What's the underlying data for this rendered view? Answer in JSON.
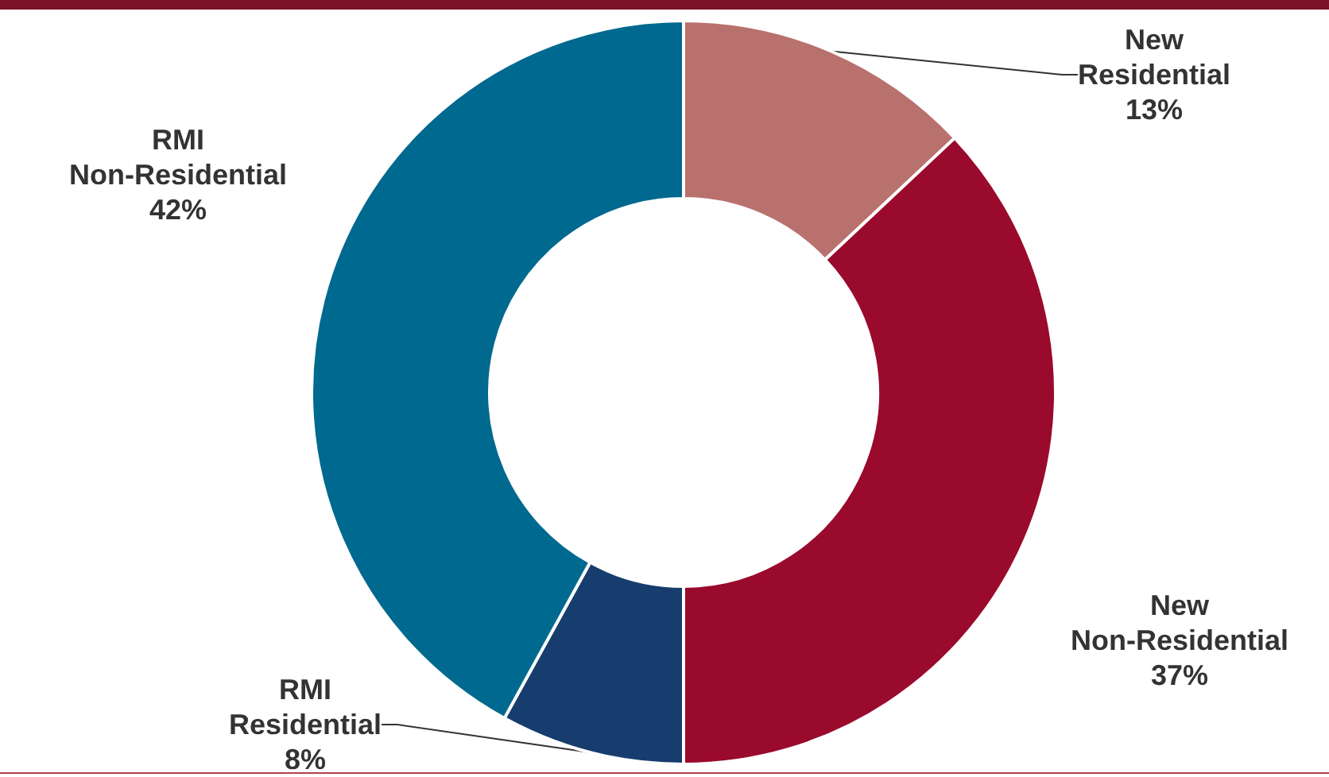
{
  "chart_data": {
    "type": "donut",
    "categories": [
      "New Residential",
      "New Non-Residential",
      "RMI Residential",
      "RMI Non-Residential"
    ],
    "values": [
      13,
      37,
      8,
      42
    ],
    "colors": [
      "#b9716e",
      "#9a0a2c",
      "#173d6e",
      "#00698f"
    ],
    "value_labels": [
      "13%",
      "37%",
      "8%",
      "42%"
    ],
    "legend": false
  }
}
